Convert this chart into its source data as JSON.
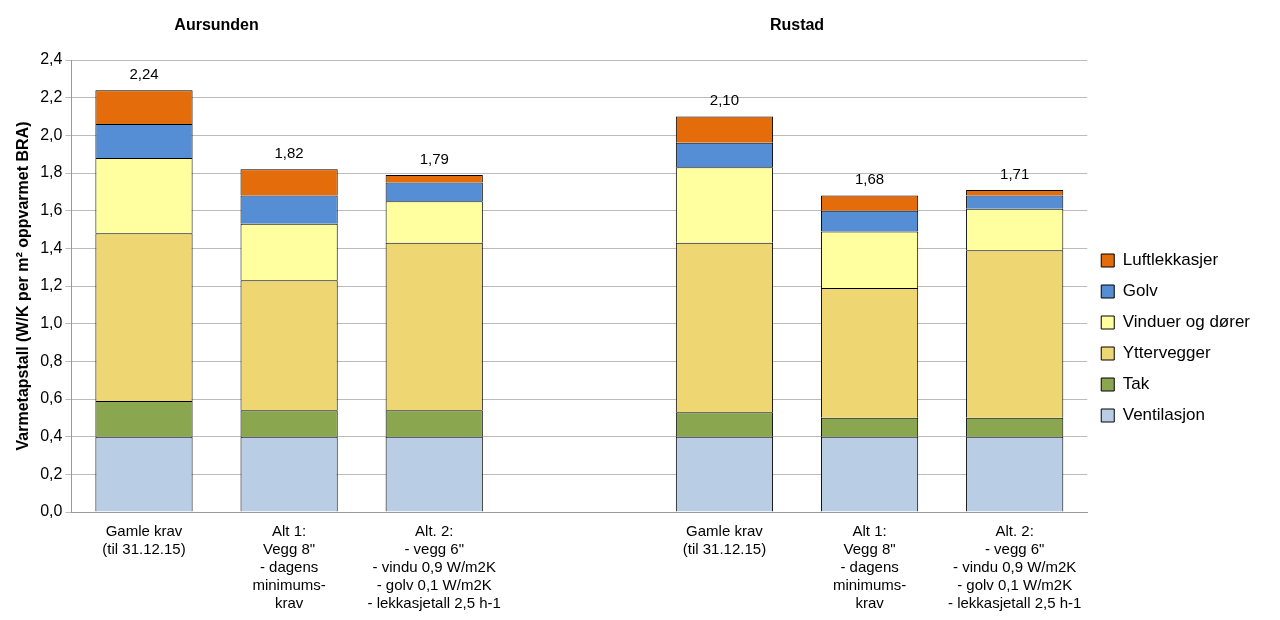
{
  "chart_data": {
    "type": "bar",
    "stacked": true,
    "ylabel": "Varmetapstall (W/K per m² oppvarmet BRA)",
    "annotations": [
      "Aursunden",
      "Rustad"
    ],
    "categories": [
      "Gamle krav\n(til 31.12.15)",
      "Alt 1:\nVegg 8\"\n- dagens\nminimums-\nkrav",
      "Alt. 2:\n- vegg 6\"\n- vindu 0,9 W/m2K\n- golv 0,1 W/m2K\n- lekkasjetall 2,5 h-1",
      null,
      "Gamle krav\n(til 31.12.15)",
      "Alt 1:\nVegg 8\"\n- dagens\nminimums-\nkrav",
      "Alt. 2:\n- vegg 6\"\n- vindu 0,9 W/m2K\n- golv 0,1 W/m2K\n- lekkasjetall 2,5 h-1"
    ],
    "series": [
      {
        "name": "Ventilasjon",
        "color": "#b9cde5",
        "values": [
          0.4,
          0.4,
          0.4,
          null,
          0.4,
          0.4,
          0.4
        ]
      },
      {
        "name": "Tak",
        "color": "#8aa64e",
        "values": [
          0.19,
          0.14,
          0.14,
          null,
          0.13,
          0.1,
          0.1
        ]
      },
      {
        "name": "Yttervegger",
        "color": "#eed672",
        "values": [
          0.89,
          0.69,
          0.89,
          null,
          0.9,
          0.69,
          0.89
        ]
      },
      {
        "name": "Vinduer og dører",
        "color": "#ffff9f",
        "values": [
          0.4,
          0.3,
          0.22,
          null,
          0.4,
          0.3,
          0.22
        ]
      },
      {
        "name": "Golv",
        "color": "#558ed5",
        "values": [
          0.18,
          0.15,
          0.1,
          null,
          0.13,
          0.11,
          0.07
        ]
      },
      {
        "name": "Luftlekkasjer",
        "color": "#e46c0a",
        "values": [
          0.18,
          0.14,
          0.04,
          null,
          0.14,
          0.08,
          0.03
        ]
      }
    ],
    "totals": [
      "2,24",
      "1,82",
      "1,79",
      null,
      "2,10",
      "1,68",
      "1,71"
    ],
    "ylim": [
      0,
      2.4
    ],
    "yticks": [
      {
        "value": 0,
        "label": "0,0"
      },
      {
        "value": 0.2,
        "label": "0,2"
      },
      {
        "value": 0.4,
        "label": "0,4"
      },
      {
        "value": 0.6,
        "label": "0,6"
      },
      {
        "value": 0.8,
        "label": "0,8"
      },
      {
        "value": 1.0,
        "label": "1,0"
      },
      {
        "value": 1.2,
        "label": "1,2"
      },
      {
        "value": 1.4,
        "label": "1,4"
      },
      {
        "value": 1.6,
        "label": "1,6"
      },
      {
        "value": 1.8,
        "label": "1,8"
      },
      {
        "value": 2.0,
        "label": "2,0"
      },
      {
        "value": 2.2,
        "label": "2,2"
      },
      {
        "value": 2.4,
        "label": "2,4"
      }
    ],
    "grid": "y",
    "legend": "right"
  }
}
